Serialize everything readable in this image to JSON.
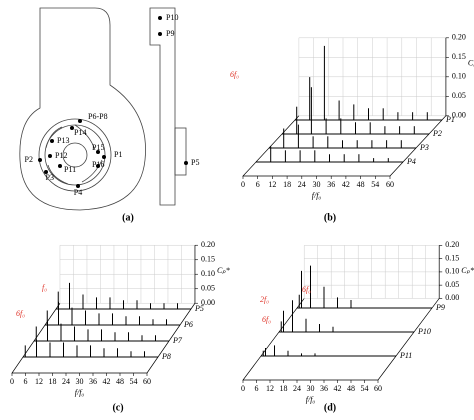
{
  "diagram": {
    "caption": "(a)",
    "points": [
      "P1",
      "P2",
      "P3",
      "P4",
      "P6-P8",
      "P11",
      "P12",
      "P13",
      "P14",
      "P15",
      "P16",
      "P10",
      "P9",
      "P5"
    ]
  },
  "chart_data": [
    {
      "type": "waterfall",
      "caption": "(b)",
      "x_label": "f/f₀",
      "y_label": "Cₚ*",
      "xlim": [
        0,
        60
      ],
      "xticks": [
        0,
        6,
        12,
        18,
        24,
        30,
        36,
        42,
        48,
        54,
        60
      ],
      "ylim": [
        0,
        0.2
      ],
      "yticks": [
        {
          "value": 0,
          "label": "0.00"
        },
        0.05,
        {
          "value": 0.1,
          "label": "0.10"
        },
        0.15,
        {
          "value": 0.2,
          "label": "0.20"
        }
      ],
      "annotations": [
        "6f₀"
      ],
      "series": [
        {
          "name": "P1",
          "color": "#000000",
          "x": [
            6,
            12,
            18,
            24,
            30,
            36,
            42,
            48,
            54
          ],
          "values": [
            0.11,
            0.19,
            0.05,
            0.04,
            0.03,
            0.03,
            0.02,
            0.02,
            0.02
          ]
        },
        {
          "name": "P2",
          "color": "#000000",
          "x": [
            6,
            12,
            18,
            24,
            30,
            36,
            42,
            48,
            54
          ],
          "values": [
            0.07,
            0.12,
            0.04,
            0.04,
            0.03,
            0.03,
            0.02,
            0.02,
            0.02
          ]
        },
        {
          "name": "P3",
          "color": "#000000",
          "x": [
            6,
            12,
            18,
            24,
            30,
            36,
            42,
            48,
            54
          ],
          "values": [
            0.05,
            0.06,
            0.03,
            0.03,
            0.02,
            0.02,
            0.02,
            0.02,
            0.02
          ]
        },
        {
          "name": "P4",
          "color": "#000000",
          "x": [
            6,
            12,
            18,
            24,
            30,
            36,
            42,
            48,
            54
          ],
          "values": [
            0.04,
            0.03,
            0.03,
            0.03,
            0.02,
            0.02,
            0.02,
            0.01,
            0.01
          ]
        }
      ]
    },
    {
      "type": "waterfall",
      "caption": "(c)",
      "x_label": "f/f₀",
      "y_label": "Cₚ*",
      "xlim": [
        0,
        60
      ],
      "xticks": [
        0,
        6,
        12,
        18,
        24,
        30,
        36,
        42,
        48,
        54,
        60
      ],
      "ylim": [
        0,
        0.2
      ],
      "yticks": [
        {
          "value": 0,
          "label": "0.00"
        },
        0.05,
        {
          "value": 0.1,
          "label": "0.10"
        },
        0.15,
        {
          "value": 0.2,
          "label": "0.20"
        }
      ],
      "annotations": [
        "f₀",
        "6f₀"
      ],
      "series": [
        {
          "name": "P5",
          "color": "#000000",
          "x": [
            1,
            6,
            12,
            18,
            24,
            30,
            36,
            42,
            48,
            54
          ],
          "values": [
            0.06,
            0.09,
            0.05,
            0.04,
            0.04,
            0.03,
            0.03,
            0.02,
            0.02,
            0.02
          ]
        },
        {
          "name": "P6",
          "color": "#000000",
          "x": [
            1,
            6,
            12,
            18,
            24,
            30,
            36,
            42,
            48,
            54
          ],
          "values": [
            0.05,
            0.08,
            0.06,
            0.05,
            0.04,
            0.04,
            0.03,
            0.03,
            0.02,
            0.02
          ]
        },
        {
          "name": "P7",
          "color": "#000000",
          "x": [
            1,
            6,
            12,
            18,
            24,
            30,
            36,
            42,
            48,
            54
          ],
          "values": [
            0.05,
            0.07,
            0.06,
            0.05,
            0.04,
            0.04,
            0.03,
            0.03,
            0.02,
            0.02
          ]
        },
        {
          "name": "P8",
          "color": "#000000",
          "x": [
            1,
            6,
            12,
            18,
            24,
            30,
            36,
            42,
            48,
            54
          ],
          "values": [
            0.04,
            0.06,
            0.05,
            0.05,
            0.04,
            0.04,
            0.03,
            0.03,
            0.02,
            0.02
          ]
        }
      ]
    },
    {
      "type": "waterfall",
      "caption": "(d)",
      "x_label": "f/f₀",
      "y_label": "Cₚ*",
      "xlim": [
        0,
        60
      ],
      "xticks": [
        0,
        6,
        12,
        18,
        24,
        30,
        36,
        42,
        48,
        54,
        60
      ],
      "ylim": [
        0,
        0.2
      ],
      "yticks": [
        {
          "value": 0,
          "label": "0.00"
        },
        0.05,
        {
          "value": 0.1,
          "label": "0.10"
        },
        0.15,
        {
          "value": 0.2,
          "label": "0.20"
        }
      ],
      "annotations": [
        "2f₀",
        "6f₀",
        "6f₀"
      ],
      "series": [
        {
          "name": "P9",
          "color": "#000000",
          "x": [
            1,
            2,
            6,
            12,
            18,
            24
          ],
          "values": [
            0.05,
            0.14,
            0.16,
            0.08,
            0.04,
            0.03
          ]
        },
        {
          "name": "P10",
          "color": "#000000",
          "x": [
            1,
            2,
            6,
            12,
            18,
            24
          ],
          "values": [
            0.04,
            0.08,
            0.12,
            0.05,
            0.03,
            0.02
          ]
        },
        {
          "name": "P11",
          "color": "#000000",
          "x": [
            1,
            2,
            6,
            12,
            18,
            24
          ],
          "values": [
            0.02,
            0.03,
            0.04,
            0.02,
            0.01,
            0.01
          ]
        }
      ]
    }
  ]
}
